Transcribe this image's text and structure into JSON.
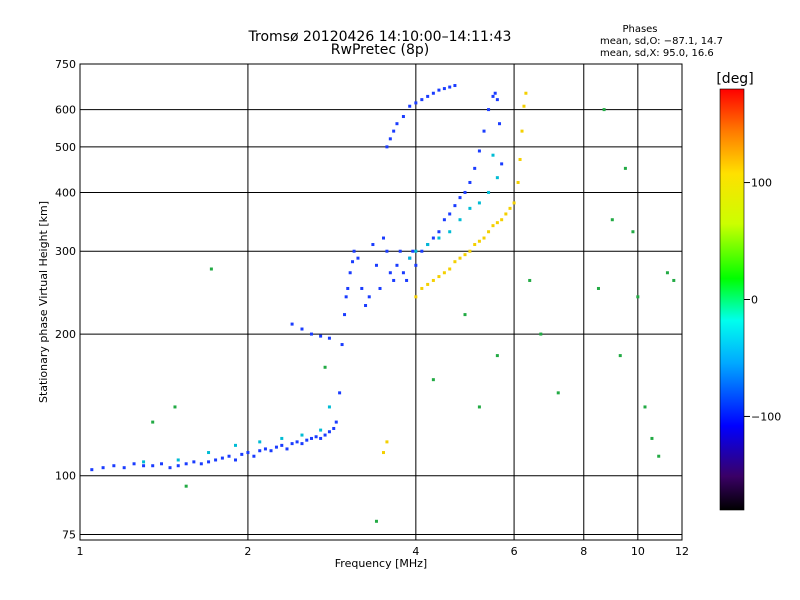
{
  "chart_data": {
    "type": "scatter",
    "title": "Tromsø 20120426 14:10:00–14:11:43",
    "subtitle": "RwPretec (8p)",
    "stats": {
      "heading": "Phases",
      "line1": "mean, sd,O: −87.1, 14.7",
      "line2": "mean, sd,X:  95.0, 16.6"
    },
    "xlabel": "Frequency [MHz]",
    "ylabel": "Stationary phase Virtual Height [km]",
    "xscale": "log",
    "yscale": "log",
    "xlim": [
      1,
      12
    ],
    "ylim": [
      73,
      750
    ],
    "xticks": [
      1,
      2,
      4,
      6,
      8,
      10,
      12
    ],
    "xtick_labels": [
      "1",
      "2",
      "4",
      "6",
      "8",
      "10",
      "12"
    ],
    "yticks": [
      75,
      100,
      200,
      300,
      400,
      500,
      600,
      750
    ],
    "ytick_labels": [
      "75",
      "100",
      "200",
      "300",
      "400",
      "500",
      "600",
      "750"
    ],
    "grid": true,
    "colorbar": {
      "label": "[deg]",
      "range": [
        -180,
        180
      ],
      "ticks": [
        100,
        0,
        -100
      ],
      "tick_labels": [
        "100",
        "0",
        "−100"
      ]
    },
    "series": [
      {
        "phase_deg": -90,
        "x": [
          1.05,
          1.1,
          1.15,
          1.2,
          1.25,
          1.3,
          1.35,
          1.4,
          1.45,
          1.5,
          1.55,
          1.6,
          1.65,
          1.7,
          1.75,
          1.8,
          1.85,
          1.9,
          1.95,
          2.0,
          2.05,
          2.1,
          2.15,
          2.2,
          2.25,
          2.3,
          2.35,
          2.4,
          2.45,
          2.5,
          2.55,
          2.6,
          2.65,
          2.7,
          2.75,
          2.8,
          2.85,
          2.88,
          2.92,
          2.95,
          2.98,
          3.0,
          3.02,
          3.05,
          3.08,
          3.1,
          3.15,
          3.2,
          3.25,
          3.3,
          3.35,
          3.4,
          3.45,
          3.5,
          3.55,
          3.6,
          3.65,
          3.7,
          3.75,
          3.8,
          3.85,
          3.9,
          3.95,
          4.0,
          4.1,
          4.2,
          4.3,
          4.4,
          4.5,
          4.6,
          4.7,
          4.8,
          4.9,
          5.0,
          5.1,
          5.2,
          5.3,
          5.4,
          5.5,
          5.55,
          5.6,
          5.65,
          5.7,
          2.4,
          2.5,
          2.6,
          2.7,
          2.8,
          3.55,
          3.6,
          3.65,
          3.7,
          3.8,
          3.9,
          4.0,
          4.1,
          4.2,
          4.3,
          4.4,
          4.5,
          4.6,
          4.7
        ],
        "y": [
          103,
          104,
          105,
          104,
          106,
          105,
          105,
          106,
          104,
          105,
          106,
          107,
          106,
          107,
          108,
          109,
          110,
          108,
          111,
          112,
          110,
          113,
          114,
          113,
          115,
          116,
          114,
          117,
          118,
          117,
          119,
          120,
          121,
          120,
          122,
          124,
          126,
          130,
          150,
          190,
          220,
          240,
          250,
          270,
          285,
          300,
          290,
          250,
          230,
          240,
          310,
          280,
          250,
          320,
          300,
          270,
          260,
          280,
          300,
          270,
          260,
          290,
          300,
          280,
          300,
          310,
          320,
          330,
          350,
          360,
          375,
          390,
          400,
          420,
          450,
          490,
          540,
          600,
          640,
          650,
          630,
          560,
          460,
          210,
          205,
          200,
          198,
          196,
          500,
          520,
          540,
          560,
          580,
          610,
          620,
          630,
          640,
          650,
          660,
          665,
          670,
          675
        ],
        "color": "#1a3cff"
      },
      {
        "phase_deg": -40,
        "x": [
          1.3,
          1.5,
          1.7,
          1.9,
          2.1,
          2.3,
          2.5,
          2.7,
          2.8,
          3.9,
          4.0,
          4.2,
          4.4,
          4.6,
          4.8,
          5.0,
          5.2,
          5.4,
          5.6,
          5.5
        ],
        "y": [
          107,
          108,
          112,
          116,
          118,
          120,
          122,
          125,
          140,
          290,
          300,
          310,
          320,
          330,
          350,
          370,
          380,
          400,
          430,
          480
        ],
        "color": "#00bcd4"
      },
      {
        "phase_deg": 95,
        "x": [
          3.5,
          3.55,
          4.0,
          4.1,
          4.2,
          4.3,
          4.4,
          4.5,
          4.6,
          4.7,
          4.8,
          4.9,
          5.0,
          5.1,
          5.2,
          5.3,
          5.4,
          5.5,
          5.6,
          5.7,
          5.8,
          5.9,
          6.0,
          6.1,
          6.15,
          6.2,
          6.25,
          6.3
        ],
        "y": [
          112,
          118,
          240,
          250,
          255,
          260,
          265,
          270,
          275,
          285,
          290,
          295,
          300,
          310,
          315,
          320,
          330,
          340,
          345,
          350,
          360,
          370,
          380,
          420,
          470,
          540,
          610,
          650
        ],
        "color": "#f4d000"
      },
      {
        "phase_deg": 0,
        "x": [
          1.35,
          1.48,
          1.55,
          1.72,
          2.75,
          3.4,
          4.3,
          4.9,
          5.2,
          5.6,
          6.4,
          6.7,
          7.2,
          8.5,
          8.7,
          9.0,
          9.3,
          9.5,
          9.8,
          10.0,
          10.3,
          10.6,
          10.9,
          11.3,
          11.6
        ],
        "y": [
          130,
          140,
          95,
          275,
          170,
          80,
          160,
          220,
          140,
          180,
          260,
          200,
          150,
          250,
          600,
          350,
          180,
          450,
          330,
          240,
          140,
          120,
          110,
          270,
          260
        ],
        "color": "#22aa44"
      }
    ]
  }
}
